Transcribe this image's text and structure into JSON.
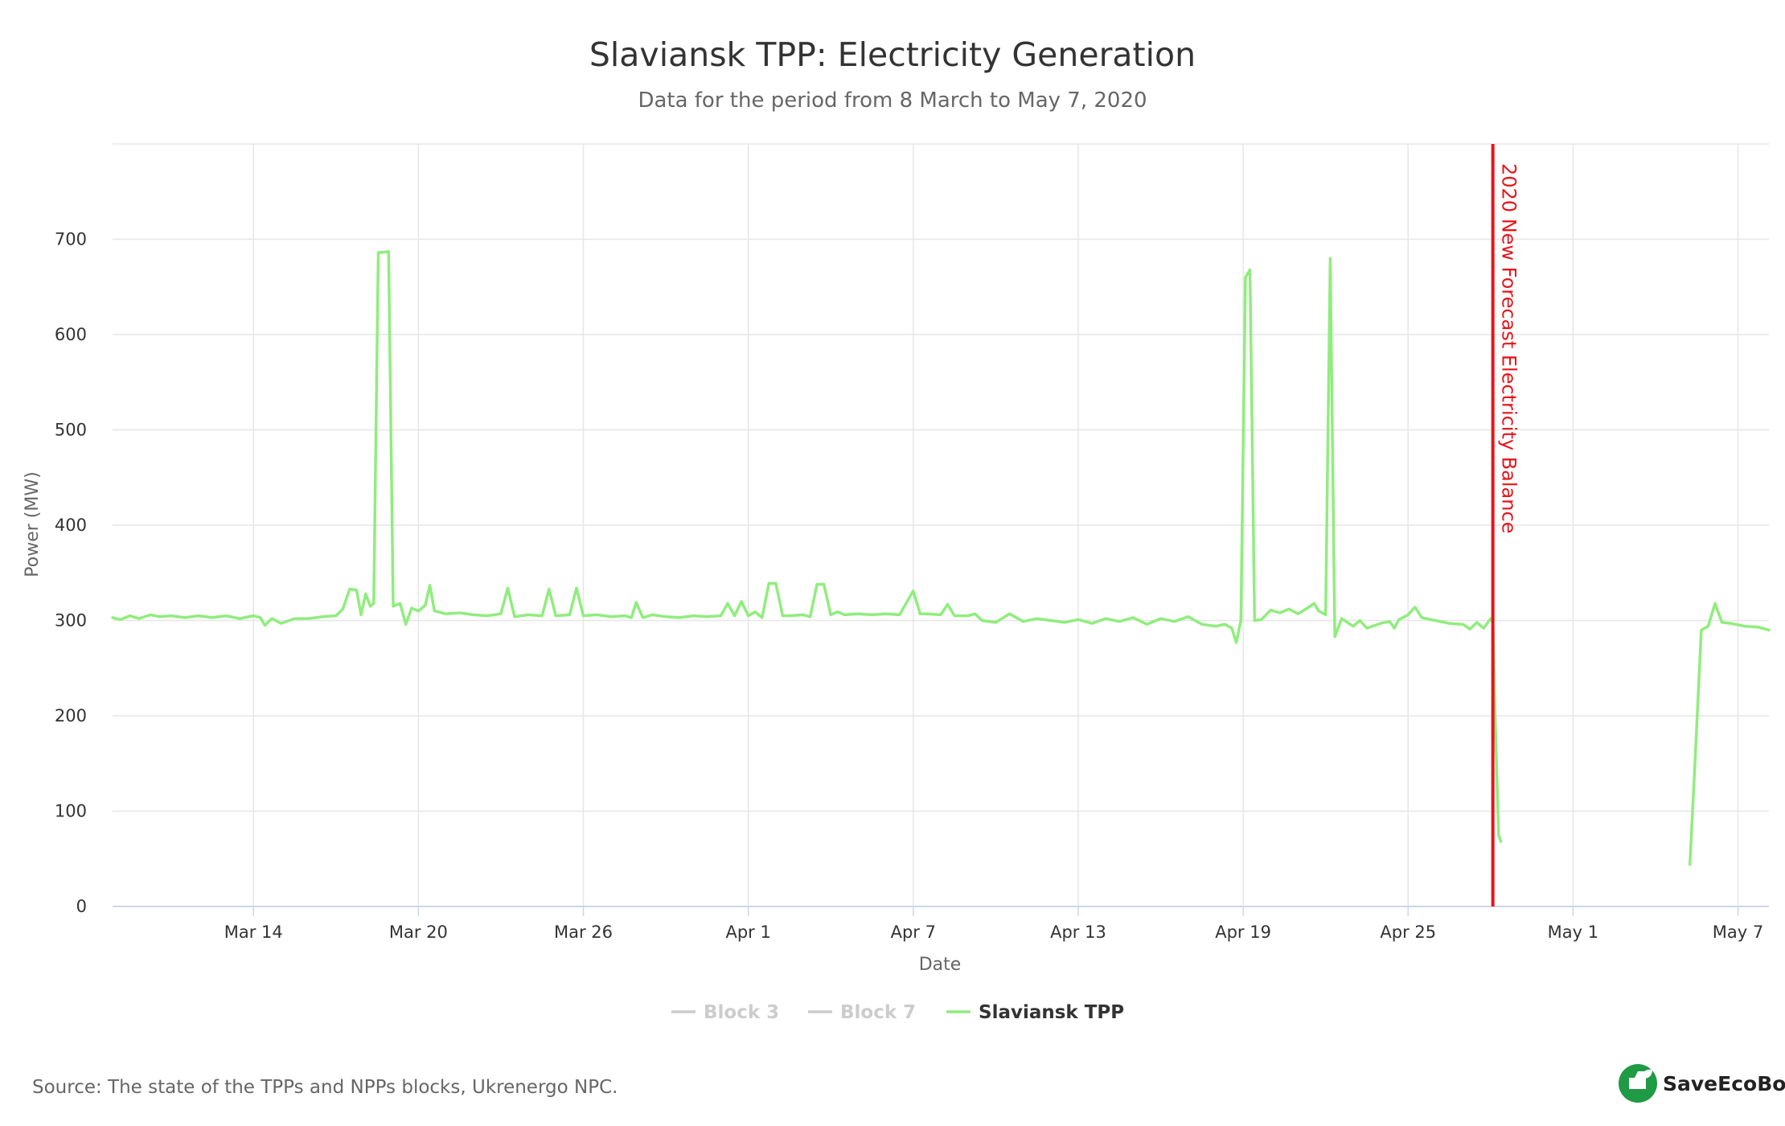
{
  "chart_data": {
    "type": "line",
    "title": "Slaviansk TPP: Electricity Generation",
    "subtitle": "Data for the period from 8 March to May 7, 2020",
    "xlabel": "Date",
    "ylabel": "Power (MW)",
    "ylim": [
      0,
      800
    ],
    "y_ticks": [
      0,
      100,
      200,
      300,
      400,
      500,
      600,
      700
    ],
    "x_range": [
      "2020-03-08 21:00",
      "2020-05-08 03:00"
    ],
    "x_ticks": [
      {
        "label": "Mar 14",
        "date": "2020-03-14"
      },
      {
        "label": "Mar 20",
        "date": "2020-03-20"
      },
      {
        "label": "Mar 26",
        "date": "2020-03-26"
      },
      {
        "label": "Apr 1",
        "date": "2020-04-01"
      },
      {
        "label": "Apr 7",
        "date": "2020-04-07"
      },
      {
        "label": "Apr 13",
        "date": "2020-04-13"
      },
      {
        "label": "Apr 19",
        "date": "2020-04-19"
      },
      {
        "label": "Apr 25",
        "date": "2020-04-25"
      },
      {
        "label": "May 1",
        "date": "2020-05-01"
      },
      {
        "label": "May 7",
        "date": "2020-05-07"
      }
    ],
    "grid": true,
    "legend_position": "bottom-center",
    "plot_line": {
      "label": "2020 New Forecast Electricity Balance",
      "date": "2020-04-28 02:00",
      "color": "#e8141b"
    },
    "series": [
      {
        "name": "Block 3",
        "visible": false,
        "color": "#cccccc",
        "points": []
      },
      {
        "name": "Block 7",
        "visible": false,
        "color": "#cccccc",
        "points": []
      },
      {
        "name": "Slaviansk TPP",
        "visible": true,
        "color": "#90ed7d",
        "segments": [
          [
            [
              "2020-03-08 21:00",
              303
            ],
            [
              "2020-03-09 04:00",
              301
            ],
            [
              "2020-03-09 12:00",
              305
            ],
            [
              "2020-03-09 20:00",
              302
            ],
            [
              "2020-03-10 06:00",
              306
            ],
            [
              "2020-03-10 14:00",
              304
            ],
            [
              "2020-03-11 00:00",
              305
            ],
            [
              "2020-03-11 12:00",
              303
            ],
            [
              "2020-03-12 00:00",
              305
            ],
            [
              "2020-03-12 12:00",
              303
            ],
            [
              "2020-03-13 00:00",
              305
            ],
            [
              "2020-03-13 12:00",
              302
            ],
            [
              "2020-03-14 00:00",
              305
            ],
            [
              "2020-03-14 06:00",
              303
            ],
            [
              "2020-03-14 10:00",
              295
            ],
            [
              "2020-03-14 16:00",
              302
            ],
            [
              "2020-03-15 00:00",
              297
            ],
            [
              "2020-03-15 12:00",
              302
            ],
            [
              "2020-03-16 00:00",
              302
            ],
            [
              "2020-03-16 12:00",
              304
            ],
            [
              "2020-03-17 00:00",
              305
            ],
            [
              "2020-03-17 06:00",
              312
            ],
            [
              "2020-03-17 12:00",
              333
            ],
            [
              "2020-03-17 18:00",
              332
            ],
            [
              "2020-03-17 22:00",
              306
            ],
            [
              "2020-03-18 02:00",
              328
            ],
            [
              "2020-03-18 06:00",
              315
            ],
            [
              "2020-03-18 09:00",
              318
            ],
            [
              "2020-03-18 13:00",
              686
            ],
            [
              "2020-03-18 22:00",
              687
            ],
            [
              "2020-03-19 02:00",
              315
            ],
            [
              "2020-03-19 08:00",
              318
            ],
            [
              "2020-03-19 13:00",
              296
            ],
            [
              "2020-03-19 18:00",
              313
            ],
            [
              "2020-03-20 00:00",
              310
            ],
            [
              "2020-03-20 06:00",
              316
            ],
            [
              "2020-03-20 10:00",
              337
            ],
            [
              "2020-03-20 14:00",
              310
            ],
            [
              "2020-03-21 00:00",
              307
            ],
            [
              "2020-03-21 12:00",
              308
            ],
            [
              "2020-03-22 00:00",
              306
            ],
            [
              "2020-03-22 12:00",
              305
            ],
            [
              "2020-03-23 00:00",
              307
            ],
            [
              "2020-03-23 06:00",
              334
            ],
            [
              "2020-03-23 12:00",
              304
            ],
            [
              "2020-03-24 00:00",
              306
            ],
            [
              "2020-03-24 12:00",
              305
            ],
            [
              "2020-03-24 18:00",
              333
            ],
            [
              "2020-03-25 00:00",
              305
            ],
            [
              "2020-03-25 12:00",
              306
            ],
            [
              "2020-03-25 18:00",
              334
            ],
            [
              "2020-03-26 00:00",
              305
            ],
            [
              "2020-03-26 12:00",
              306
            ],
            [
              "2020-03-27 00:00",
              304
            ],
            [
              "2020-03-27 12:00",
              305
            ],
            [
              "2020-03-27 18:00",
              303
            ],
            [
              "2020-03-27 22:00",
              319
            ],
            [
              "2020-03-28 04:00",
              303
            ],
            [
              "2020-03-28 12:00",
              306
            ],
            [
              "2020-03-29 00:00",
              304
            ],
            [
              "2020-03-29 12:00",
              303
            ],
            [
              "2020-03-30 00:00",
              305
            ],
            [
              "2020-03-30 12:00",
              304
            ],
            [
              "2020-03-31 00:00",
              305
            ],
            [
              "2020-03-31 06:00",
              318
            ],
            [
              "2020-03-31 12:00",
              305
            ],
            [
              "2020-03-31 18:00",
              320
            ],
            [
              "2020-04-01 00:00",
              305
            ],
            [
              "2020-04-01 06:00",
              309
            ],
            [
              "2020-04-01 12:00",
              303
            ],
            [
              "2020-04-01 18:00",
              339
            ],
            [
              "2020-04-02 00:00",
              339
            ],
            [
              "2020-04-02 06:00",
              305
            ],
            [
              "2020-04-02 12:00",
              305
            ],
            [
              "2020-04-03 00:00",
              306
            ],
            [
              "2020-04-03 06:00",
              304
            ],
            [
              "2020-04-03 12:00",
              338
            ],
            [
              "2020-04-03 18:00",
              338
            ],
            [
              "2020-04-04 00:00",
              306
            ],
            [
              "2020-04-04 06:00",
              309
            ],
            [
              "2020-04-04 12:00",
              306
            ],
            [
              "2020-04-05 00:00",
              307
            ],
            [
              "2020-04-05 12:00",
              306
            ],
            [
              "2020-04-06 00:00",
              307
            ],
            [
              "2020-04-06 12:00",
              306
            ],
            [
              "2020-04-07 00:00",
              331
            ],
            [
              "2020-04-07 06:00",
              307
            ],
            [
              "2020-04-07 12:00",
              307
            ],
            [
              "2020-04-08 00:00",
              306
            ],
            [
              "2020-04-08 06:00",
              317
            ],
            [
              "2020-04-08 12:00",
              305
            ],
            [
              "2020-04-09 00:00",
              305
            ],
            [
              "2020-04-09 06:00",
              307
            ],
            [
              "2020-04-09 12:00",
              300
            ],
            [
              "2020-04-10 00:00",
              298
            ],
            [
              "2020-04-10 12:00",
              307
            ],
            [
              "2020-04-11 00:00",
              299
            ],
            [
              "2020-04-11 12:00",
              302
            ],
            [
              "2020-04-12 00:00",
              300
            ],
            [
              "2020-04-12 12:00",
              298
            ],
            [
              "2020-04-13 00:00",
              301
            ],
            [
              "2020-04-13 12:00",
              297
            ],
            [
              "2020-04-14 00:00",
              302
            ],
            [
              "2020-04-14 12:00",
              299
            ],
            [
              "2020-04-15 00:00",
              303
            ],
            [
              "2020-04-15 12:00",
              296
            ],
            [
              "2020-04-16 00:00",
              302
            ],
            [
              "2020-04-16 12:00",
              299
            ],
            [
              "2020-04-17 00:00",
              304
            ],
            [
              "2020-04-17 12:00",
              296
            ],
            [
              "2020-04-18 00:00",
              294
            ],
            [
              "2020-04-18 08:00",
              296
            ],
            [
              "2020-04-18 14:00",
              292
            ],
            [
              "2020-04-18 18:00",
              277
            ],
            [
              "2020-04-18 22:00",
              300
            ],
            [
              "2020-04-19 02:00",
              660
            ],
            [
              "2020-04-19 06:00",
              668
            ],
            [
              "2020-04-19 10:00",
              300
            ],
            [
              "2020-04-19 16:00",
              301
            ],
            [
              "2020-04-20 00:00",
              311
            ],
            [
              "2020-04-20 08:00",
              308
            ],
            [
              "2020-04-20 16:00",
              312
            ],
            [
              "2020-04-21 00:00",
              307
            ],
            [
              "2020-04-21 08:00",
              313
            ],
            [
              "2020-04-21 14:00",
              318
            ],
            [
              "2020-04-21 18:00",
              310
            ],
            [
              "2020-04-22 00:00",
              306
            ],
            [
              "2020-04-22 04:00",
              680
            ],
            [
              "2020-04-22 08:00",
              283
            ],
            [
              "2020-04-22 14:00",
              302
            ],
            [
              "2020-04-23 00:00",
              294
            ],
            [
              "2020-04-23 06:00",
              300
            ],
            [
              "2020-04-23 12:00",
              292
            ],
            [
              "2020-04-24 00:00",
              297
            ],
            [
              "2020-04-24 08:00",
              299
            ],
            [
              "2020-04-24 12:00",
              292
            ],
            [
              "2020-04-24 16:00",
              301
            ],
            [
              "2020-04-25 00:00",
              306
            ],
            [
              "2020-04-25 06:00",
              314
            ],
            [
              "2020-04-25 12:00",
              303
            ],
            [
              "2020-04-26 00:00",
              300
            ],
            [
              "2020-04-26 12:00",
              297
            ],
            [
              "2020-04-27 00:00",
              296
            ],
            [
              "2020-04-27 06:00",
              291
            ],
            [
              "2020-04-27 12:00",
              298
            ],
            [
              "2020-04-27 18:00",
              292
            ],
            [
              "2020-04-28 00:00",
              302
            ],
            [
              "2020-04-28 02:00",
              298
            ],
            [
              "2020-04-28 04:00",
              200
            ],
            [
              "2020-04-28 07:00",
              75
            ],
            [
              "2020-04-28 09:00",
              68
            ]
          ],
          [
            [
              "2020-05-05 06:00",
              44
            ],
            [
              "2020-05-05 10:00",
              140
            ],
            [
              "2020-05-05 16:00",
              290
            ],
            [
              "2020-05-05 22:00",
              294
            ],
            [
              "2020-05-06 04:00",
              318
            ],
            [
              "2020-05-06 10:00",
              298
            ],
            [
              "2020-05-06 18:00",
              297
            ],
            [
              "2020-05-07 06:00",
              294
            ],
            [
              "2020-05-07 18:00",
              293
            ],
            [
              "2020-05-08 03:00",
              290
            ]
          ]
        ]
      }
    ]
  },
  "source_text": "Source: The state of the TPPs and NPPs blocks, Ukrenergo NPC.",
  "brand": {
    "name": "SaveEcoBot",
    "color": "#1f9a45"
  }
}
